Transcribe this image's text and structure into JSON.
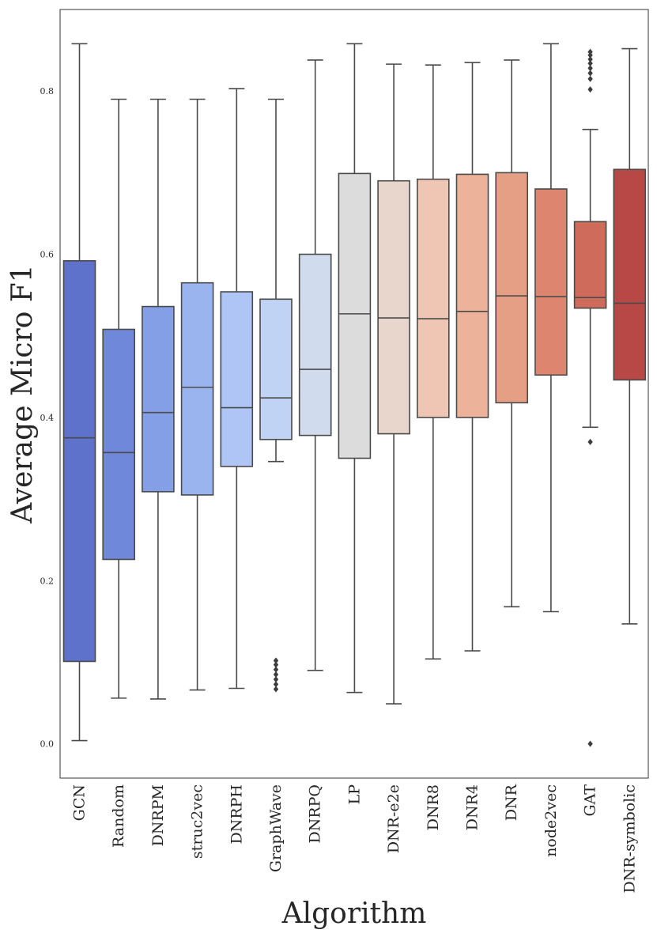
{
  "chart_data": {
    "type": "box",
    "title": "",
    "xlabel": "Algorithm",
    "ylabel": "Average Micro F1",
    "ylim": [
      -0.042,
      0.9
    ],
    "yticks": [
      "0.0",
      "0.2",
      "0.4",
      "0.6",
      "0.8"
    ],
    "categories": [
      "GCN",
      "Random",
      "DNRPM",
      "struc2vec",
      "DNRPH",
      "GraphWave",
      "DNRPQ",
      "LP",
      "DNR-e2e",
      "DNR8",
      "DNR4",
      "DNR",
      "node2vec",
      "GAT",
      "DNR-symbolic"
    ],
    "boxes": [
      {
        "name": "GCN",
        "whisker_low": 0.004,
        "q1": 0.101,
        "median": 0.375,
        "q3": 0.592,
        "whisker_high": 0.858,
        "outliers": [],
        "color": "#5e71cb"
      },
      {
        "name": "Random",
        "whisker_low": 0.056,
        "q1": 0.226,
        "median": 0.357,
        "q3": 0.508,
        "whisker_high": 0.79,
        "outliers": [],
        "color": "#7088da"
      },
      {
        "name": "DNRPM",
        "whisker_low": 0.055,
        "q1": 0.309,
        "median": 0.406,
        "q3": 0.536,
        "whisker_high": 0.79,
        "outliers": [],
        "color": "#859fe6"
      },
      {
        "name": "struc2vec",
        "whisker_low": 0.066,
        "q1": 0.305,
        "median": 0.437,
        "q3": 0.565,
        "whisker_high": 0.79,
        "outliers": [],
        "color": "#9ab4f0"
      },
      {
        "name": "DNRPH",
        "whisker_low": 0.068,
        "q1": 0.34,
        "median": 0.412,
        "q3": 0.554,
        "whisker_high": 0.803,
        "outliers": [],
        "color": "#aec5f5"
      },
      {
        "name": "GraphWave",
        "whisker_low": 0.346,
        "q1": 0.373,
        "median": 0.424,
        "q3": 0.545,
        "whisker_high": 0.79,
        "outliers": [
          0.067,
          0.073,
          0.079,
          0.085,
          0.091,
          0.097,
          0.102
        ],
        "color": "#c0d3f5"
      },
      {
        "name": "DNRPQ",
        "whisker_low": 0.09,
        "q1": 0.378,
        "median": 0.459,
        "q3": 0.6,
        "whisker_high": 0.838,
        "outliers": [],
        "color": "#d0dbee"
      },
      {
        "name": "LP",
        "whisker_low": 0.063,
        "q1": 0.35,
        "median": 0.527,
        "q3": 0.699,
        "whisker_high": 0.858,
        "outliers": [],
        "color": "#dcdcdc"
      },
      {
        "name": "DNR-e2e",
        "whisker_low": 0.049,
        "q1": 0.38,
        "median": 0.522,
        "q3": 0.69,
        "whisker_high": 0.833,
        "outliers": [],
        "color": "#e8d5cb"
      },
      {
        "name": "DNR8",
        "whisker_low": 0.104,
        "q1": 0.4,
        "median": 0.521,
        "q3": 0.692,
        "whisker_high": 0.832,
        "outliers": [],
        "color": "#eec6b3"
      },
      {
        "name": "DNR4",
        "whisker_low": 0.114,
        "q1": 0.4,
        "median": 0.53,
        "q3": 0.698,
        "whisker_high": 0.835,
        "outliers": [],
        "color": "#edb39a"
      },
      {
        "name": "DNR",
        "whisker_low": 0.168,
        "q1": 0.418,
        "median": 0.549,
        "q3": 0.7,
        "whisker_high": 0.838,
        "outliers": [],
        "color": "#e49f85"
      },
      {
        "name": "node2vec",
        "whisker_low": 0.162,
        "q1": 0.452,
        "median": 0.548,
        "q3": 0.68,
        "whisker_high": 0.858,
        "outliers": [],
        "color": "#de8570"
      },
      {
        "name": "GAT",
        "whisker_low": 0.388,
        "q1": 0.534,
        "median": 0.547,
        "q3": 0.64,
        "whisker_high": 0.753,
        "outliers": [
          0.0,
          0.37,
          0.802,
          0.815,
          0.822,
          0.828,
          0.834,
          0.839,
          0.844,
          0.848
        ],
        "color": "#ce6b5b"
      },
      {
        "name": "DNR-symbolic",
        "whisker_low": 0.147,
        "q1": 0.446,
        "median": 0.54,
        "q3": 0.704,
        "whisker_high": 0.852,
        "outliers": [],
        "color": "#b84846"
      }
    ]
  }
}
